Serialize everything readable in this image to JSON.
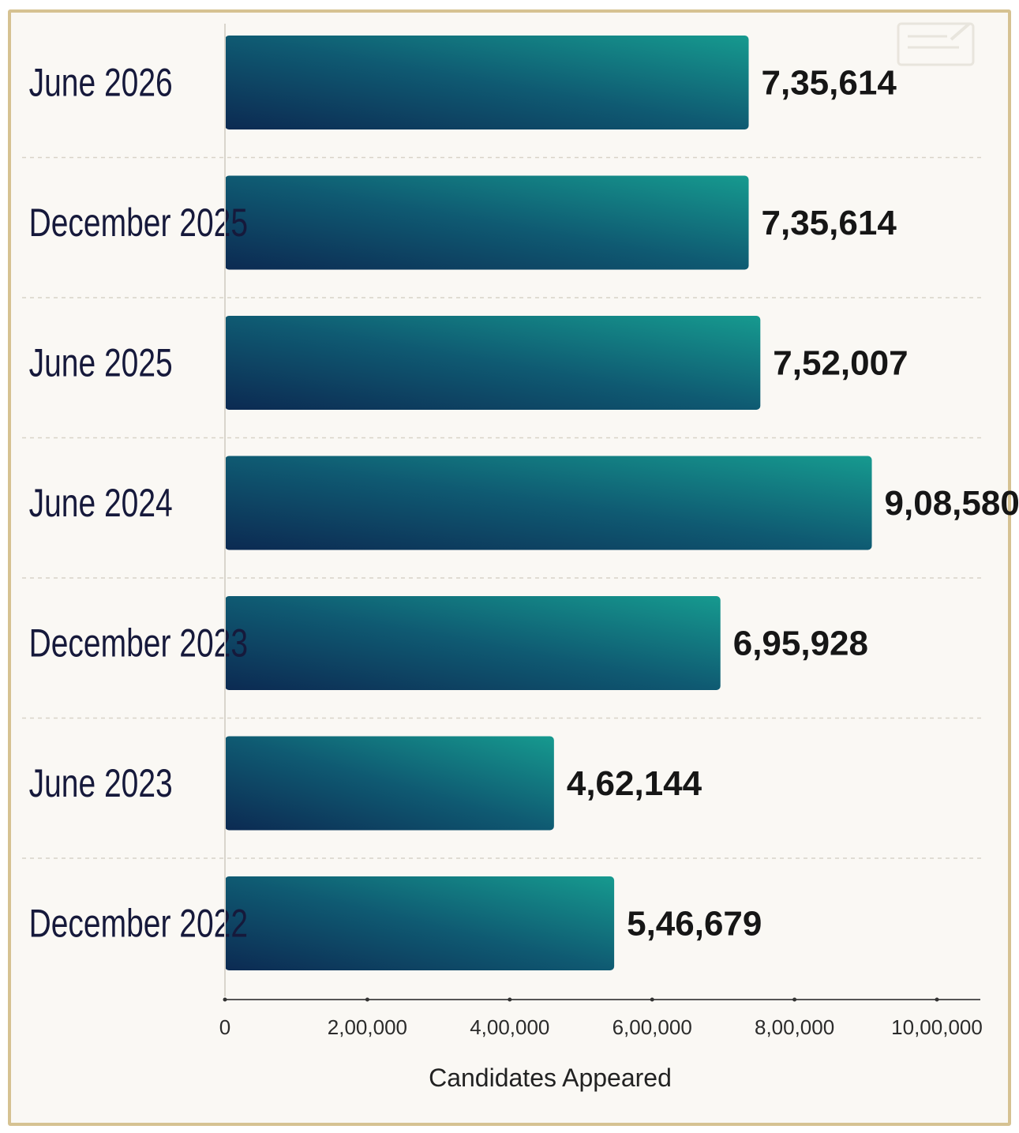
{
  "chart_data": {
    "type": "bar",
    "orientation": "horizontal",
    "categories": [
      "June 2026",
      "December 2025",
      "June 2025",
      "June 2024",
      "December 2023",
      "June 2023",
      "December 2022"
    ],
    "values": [
      735614,
      735614,
      752007,
      908580,
      695928,
      462144,
      546679
    ],
    "value_labels": [
      "7,35,614",
      "7,35,614",
      "7,52,007",
      "9,08,580",
      "6,95,928",
      "4,62,144",
      "5,46,679"
    ],
    "xlabel": "Candidates Appeared",
    "xlim": [
      0,
      1000000
    ],
    "xticks": [
      0,
      200000,
      400000,
      600000,
      800000,
      1000000
    ],
    "xtick_labels": [
      "0",
      "2,00,000",
      "4,00,000",
      "6,00,000",
      "8,00,000",
      "10,00,000"
    ],
    "grid": false,
    "row_separators": "dashed",
    "colors": {
      "bar_dark": "#0c2a52",
      "bar_light": "#169a8f",
      "panel_background": "#faf8f4",
      "border": "#d6c292"
    }
  }
}
